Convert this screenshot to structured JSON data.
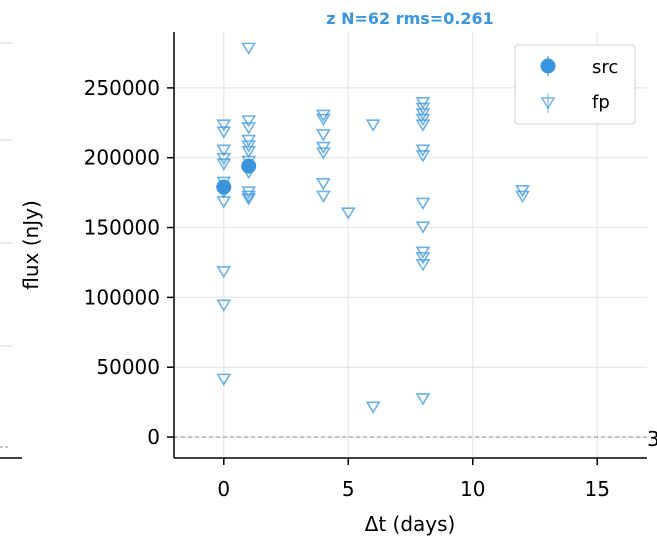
{
  "chart_data": {
    "type": "scatter",
    "title": "z  N=62  rms=0.261",
    "xlabel": "Δt (days)",
    "ylabel": "flux (nJy)",
    "xlim": [
      -2,
      17
    ],
    "ylim": [
      -15000,
      290000
    ],
    "x_ticks": [
      0,
      5,
      10,
      15
    ],
    "y_ticks": [
      0,
      50000,
      100000,
      150000,
      200000,
      250000
    ],
    "x_tick_labels": [
      "0",
      "5",
      "10",
      "15"
    ],
    "y_tick_labels": [
      "0",
      "50000",
      "100000",
      "150000",
      "200000",
      "250000"
    ],
    "grid": true,
    "reference_line_y": 0,
    "legend": {
      "placement": "top-right",
      "entries": [
        "src",
        "fp"
      ]
    },
    "colors": {
      "series": "#3b95dc",
      "grid": "#e6e6e6",
      "zero_line": "#888888"
    },
    "series": [
      {
        "name": "src",
        "marker": "circle",
        "points": [
          {
            "x": 0.0,
            "y": 179000
          },
          {
            "x": 1.0,
            "y": 194000
          }
        ]
      },
      {
        "name": "fp",
        "marker": "triangle-down",
        "points": [
          {
            "x": 0.0,
            "y": 224000
          },
          {
            "x": 0.0,
            "y": 219000
          },
          {
            "x": 0.0,
            "y": 206000
          },
          {
            "x": 0.0,
            "y": 200000
          },
          {
            "x": 0.0,
            "y": 196000
          },
          {
            "x": 0.0,
            "y": 183000
          },
          {
            "x": 0.0,
            "y": 176000
          },
          {
            "x": 0.0,
            "y": 169000
          },
          {
            "x": 0.0,
            "y": 119000
          },
          {
            "x": 0.0,
            "y": 95000
          },
          {
            "x": 0.0,
            "y": 42000
          },
          {
            "x": 1.0,
            "y": 279000
          },
          {
            "x": 1.0,
            "y": 227000
          },
          {
            "x": 1.0,
            "y": 222000
          },
          {
            "x": 1.0,
            "y": 213000
          },
          {
            "x": 1.0,
            "y": 209000
          },
          {
            "x": 1.0,
            "y": 205000
          },
          {
            "x": 1.0,
            "y": 198000
          },
          {
            "x": 1.0,
            "y": 190000
          },
          {
            "x": 1.0,
            "y": 176000
          },
          {
            "x": 1.0,
            "y": 173000
          },
          {
            "x": 1.0,
            "y": 171000
          },
          {
            "x": 4.0,
            "y": 231000
          },
          {
            "x": 4.0,
            "y": 228000
          },
          {
            "x": 4.0,
            "y": 217000
          },
          {
            "x": 4.0,
            "y": 208000
          },
          {
            "x": 4.0,
            "y": 204000
          },
          {
            "x": 4.0,
            "y": 182000
          },
          {
            "x": 4.0,
            "y": 173000
          },
          {
            "x": 5.0,
            "y": 161000
          },
          {
            "x": 6.0,
            "y": 224000
          },
          {
            "x": 6.0,
            "y": 22000
          },
          {
            "x": 8.0,
            "y": 240000
          },
          {
            "x": 8.0,
            "y": 236000
          },
          {
            "x": 8.0,
            "y": 232000
          },
          {
            "x": 8.0,
            "y": 228000
          },
          {
            "x": 8.0,
            "y": 224000
          },
          {
            "x": 8.0,
            "y": 206000
          },
          {
            "x": 8.0,
            "y": 202000
          },
          {
            "x": 8.0,
            "y": 168000
          },
          {
            "x": 8.0,
            "y": 151000
          },
          {
            "x": 8.0,
            "y": 133000
          },
          {
            "x": 8.0,
            "y": 129000
          },
          {
            "x": 8.0,
            "y": 124000
          },
          {
            "x": 8.0,
            "y": 28000
          },
          {
            "x": 12.0,
            "y": 177000
          },
          {
            "x": 12.0,
            "y": 173000
          }
        ]
      }
    ]
  }
}
